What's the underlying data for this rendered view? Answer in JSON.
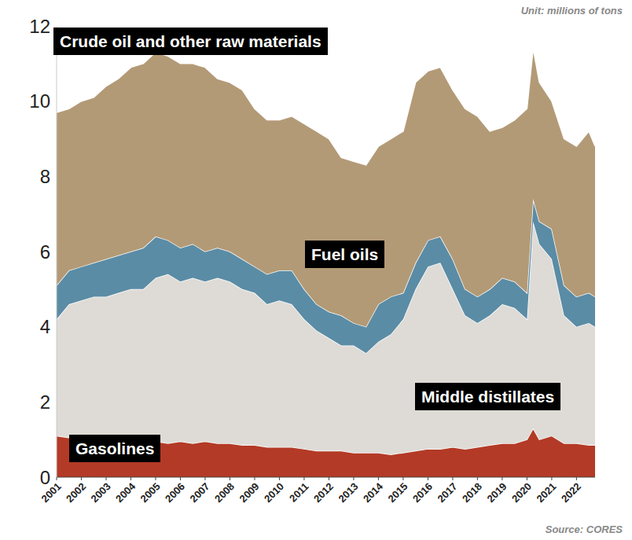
{
  "chart_data": {
    "type": "area",
    "stacked": true,
    "grid": false,
    "subtitle": "Unit: millions of tons",
    "caption": "Source: CORES",
    "x": [
      2001,
      2001.5,
      2002,
      2002.5,
      2003,
      2003.5,
      2004,
      2004.5,
      2005,
      2005.5,
      2006,
      2006.5,
      2007,
      2007.5,
      2008,
      2008.5,
      2009,
      2009.5,
      2010,
      2010.5,
      2011,
      2011.5,
      2012,
      2012.5,
      2013,
      2013.5,
      2014,
      2014.5,
      2015,
      2015.5,
      2016,
      2016.5,
      2017,
      2017.5,
      2018,
      2018.5,
      2019,
      2019.5,
      2020,
      2020.25,
      2020.5,
      2021,
      2021.5,
      2022,
      2022.5,
      2022.75
    ],
    "xlim": [
      2001,
      2022.75
    ],
    "xticks": [
      2001,
      2002,
      2003,
      2004,
      2005,
      2006,
      2007,
      2008,
      2009,
      2010,
      2011,
      2012,
      2013,
      2014,
      2015,
      2016,
      2017,
      2018,
      2019,
      2020,
      2021,
      2022
    ],
    "ylim": [
      0,
      12
    ],
    "yticks": [
      0,
      2,
      4,
      6,
      8,
      10,
      12
    ],
    "series": [
      {
        "name": "Gasolines",
        "color": "#b33a26",
        "values": [
          1.1,
          1.05,
          1.0,
          1.0,
          0.95,
          0.95,
          0.95,
          0.9,
          0.95,
          0.9,
          0.95,
          0.9,
          0.95,
          0.9,
          0.9,
          0.85,
          0.85,
          0.8,
          0.8,
          0.8,
          0.75,
          0.7,
          0.7,
          0.7,
          0.65,
          0.65,
          0.65,
          0.6,
          0.65,
          0.7,
          0.75,
          0.75,
          0.8,
          0.75,
          0.8,
          0.85,
          0.9,
          0.9,
          1.0,
          1.3,
          1.0,
          1.1,
          0.9,
          0.9,
          0.85,
          0.85
        ]
      },
      {
        "name": "Middle distillates",
        "color": "#dedbd6",
        "values": [
          3.1,
          3.55,
          3.7,
          3.8,
          3.85,
          3.95,
          4.05,
          4.1,
          4.35,
          4.5,
          4.25,
          4.4,
          4.25,
          4.4,
          4.3,
          4.15,
          4.05,
          3.8,
          3.9,
          3.8,
          3.45,
          3.2,
          3.0,
          2.8,
          2.85,
          2.65,
          2.95,
          3.2,
          3.55,
          4.3,
          4.85,
          4.95,
          4.2,
          3.55,
          3.3,
          3.45,
          3.7,
          3.6,
          3.2,
          5.5,
          5.2,
          4.7,
          3.4,
          3.1,
          3.25,
          3.15
        ]
      },
      {
        "name": "Fuel oils",
        "color": "#5b8ca5",
        "values": [
          0.9,
          0.9,
          0.9,
          0.9,
          1.0,
          1.0,
          1.0,
          1.1,
          1.1,
          0.9,
          0.9,
          0.9,
          0.8,
          0.8,
          0.8,
          0.8,
          0.7,
          0.8,
          0.8,
          0.9,
          0.8,
          0.7,
          0.7,
          0.8,
          0.6,
          0.7,
          1.0,
          1.0,
          0.7,
          0.7,
          0.7,
          0.7,
          0.8,
          0.7,
          0.7,
          0.7,
          0.7,
          0.7,
          0.7,
          0.6,
          0.6,
          0.8,
          0.8,
          0.8,
          0.8,
          0.8
        ]
      },
      {
        "name": "Crude oil and other raw materials",
        "color": "#b39a76",
        "values": [
          4.6,
          4.3,
          4.4,
          4.4,
          4.6,
          4.7,
          4.9,
          4.9,
          4.9,
          4.9,
          4.9,
          4.8,
          4.9,
          4.5,
          4.5,
          4.5,
          4.2,
          4.1,
          4.0,
          4.1,
          4.4,
          4.6,
          4.6,
          4.2,
          4.3,
          4.3,
          4.2,
          4.2,
          4.3,
          4.8,
          4.5,
          4.5,
          4.5,
          4.8,
          4.8,
          4.2,
          4.0,
          4.3,
          4.9,
          4.0,
          3.7,
          3.4,
          3.9,
          4.0,
          4.3,
          4.0
        ]
      }
    ]
  }
}
